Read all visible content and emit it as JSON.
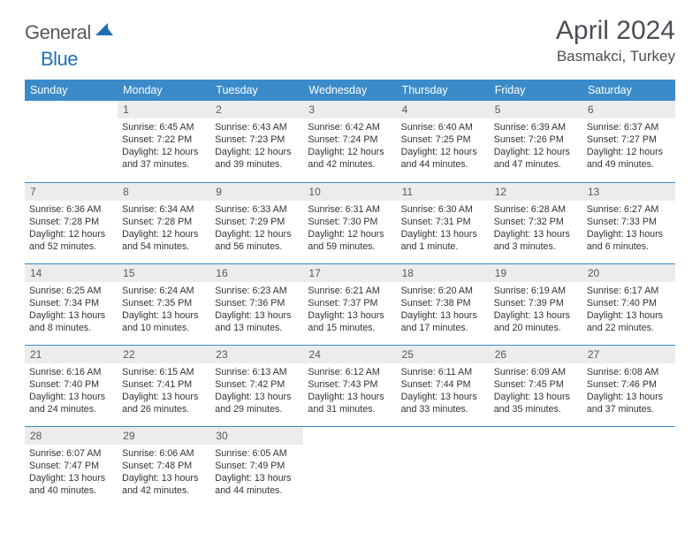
{
  "brand": {
    "name1": "General",
    "name2": "Blue"
  },
  "title": {
    "month": "April 2024",
    "location": "Basmakci, Turkey"
  },
  "theme": {
    "header_bg": "#3b8bc9",
    "header_fg": "#ffffff",
    "daynum_bg": "#ececec",
    "rule_color": "#3b8bc9",
    "text_color": "#333333",
    "title_color": "#4a4f54",
    "logo_gray": "#555a5f",
    "logo_blue": "#2071b5"
  },
  "weekdays": [
    "Sunday",
    "Monday",
    "Tuesday",
    "Wednesday",
    "Thursday",
    "Friday",
    "Saturday"
  ],
  "weeks": [
    [
      null,
      {
        "n": "1",
        "sr": "6:45 AM",
        "ss": "7:22 PM",
        "dl": "12 hours and 37 minutes."
      },
      {
        "n": "2",
        "sr": "6:43 AM",
        "ss": "7:23 PM",
        "dl": "12 hours and 39 minutes."
      },
      {
        "n": "3",
        "sr": "6:42 AM",
        "ss": "7:24 PM",
        "dl": "12 hours and 42 minutes."
      },
      {
        "n": "4",
        "sr": "6:40 AM",
        "ss": "7:25 PM",
        "dl": "12 hours and 44 minutes."
      },
      {
        "n": "5",
        "sr": "6:39 AM",
        "ss": "7:26 PM",
        "dl": "12 hours and 47 minutes."
      },
      {
        "n": "6",
        "sr": "6:37 AM",
        "ss": "7:27 PM",
        "dl": "12 hours and 49 minutes."
      }
    ],
    [
      {
        "n": "7",
        "sr": "6:36 AM",
        "ss": "7:28 PM",
        "dl": "12 hours and 52 minutes."
      },
      {
        "n": "8",
        "sr": "6:34 AM",
        "ss": "7:28 PM",
        "dl": "12 hours and 54 minutes."
      },
      {
        "n": "9",
        "sr": "6:33 AM",
        "ss": "7:29 PM",
        "dl": "12 hours and 56 minutes."
      },
      {
        "n": "10",
        "sr": "6:31 AM",
        "ss": "7:30 PM",
        "dl": "12 hours and 59 minutes."
      },
      {
        "n": "11",
        "sr": "6:30 AM",
        "ss": "7:31 PM",
        "dl": "13 hours and 1 minute."
      },
      {
        "n": "12",
        "sr": "6:28 AM",
        "ss": "7:32 PM",
        "dl": "13 hours and 3 minutes."
      },
      {
        "n": "13",
        "sr": "6:27 AM",
        "ss": "7:33 PM",
        "dl": "13 hours and 6 minutes."
      }
    ],
    [
      {
        "n": "14",
        "sr": "6:25 AM",
        "ss": "7:34 PM",
        "dl": "13 hours and 8 minutes."
      },
      {
        "n": "15",
        "sr": "6:24 AM",
        "ss": "7:35 PM",
        "dl": "13 hours and 10 minutes."
      },
      {
        "n": "16",
        "sr": "6:23 AM",
        "ss": "7:36 PM",
        "dl": "13 hours and 13 minutes."
      },
      {
        "n": "17",
        "sr": "6:21 AM",
        "ss": "7:37 PM",
        "dl": "13 hours and 15 minutes."
      },
      {
        "n": "18",
        "sr": "6:20 AM",
        "ss": "7:38 PM",
        "dl": "13 hours and 17 minutes."
      },
      {
        "n": "19",
        "sr": "6:19 AM",
        "ss": "7:39 PM",
        "dl": "13 hours and 20 minutes."
      },
      {
        "n": "20",
        "sr": "6:17 AM",
        "ss": "7:40 PM",
        "dl": "13 hours and 22 minutes."
      }
    ],
    [
      {
        "n": "21",
        "sr": "6:16 AM",
        "ss": "7:40 PM",
        "dl": "13 hours and 24 minutes."
      },
      {
        "n": "22",
        "sr": "6:15 AM",
        "ss": "7:41 PM",
        "dl": "13 hours and 26 minutes."
      },
      {
        "n": "23",
        "sr": "6:13 AM",
        "ss": "7:42 PM",
        "dl": "13 hours and 29 minutes."
      },
      {
        "n": "24",
        "sr": "6:12 AM",
        "ss": "7:43 PM",
        "dl": "13 hours and 31 minutes."
      },
      {
        "n": "25",
        "sr": "6:11 AM",
        "ss": "7:44 PM",
        "dl": "13 hours and 33 minutes."
      },
      {
        "n": "26",
        "sr": "6:09 AM",
        "ss": "7:45 PM",
        "dl": "13 hours and 35 minutes."
      },
      {
        "n": "27",
        "sr": "6:08 AM",
        "ss": "7:46 PM",
        "dl": "13 hours and 37 minutes."
      }
    ],
    [
      {
        "n": "28",
        "sr": "6:07 AM",
        "ss": "7:47 PM",
        "dl": "13 hours and 40 minutes."
      },
      {
        "n": "29",
        "sr": "6:06 AM",
        "ss": "7:48 PM",
        "dl": "13 hours and 42 minutes."
      },
      {
        "n": "30",
        "sr": "6:05 AM",
        "ss": "7:49 PM",
        "dl": "13 hours and 44 minutes."
      },
      null,
      null,
      null,
      null
    ]
  ],
  "labels": {
    "sunrise": "Sunrise:",
    "sunset": "Sunset:",
    "daylight": "Daylight:"
  }
}
